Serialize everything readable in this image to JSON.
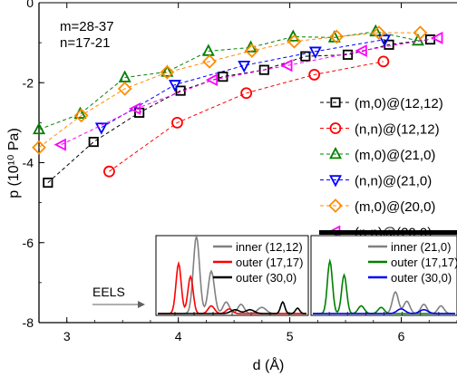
{
  "chart_data": {
    "type": "line",
    "title": "",
    "xlabel": "d (Å)",
    "ylabel": "p (10¹⁰ Pa)",
    "xlim": [
      2.75,
      6.5
    ],
    "ylim": [
      -8,
      0
    ],
    "xticks": [
      3,
      4,
      5,
      6
    ],
    "yticks": [
      0,
      -2,
      -4,
      -6,
      -8
    ],
    "grid": false,
    "legend_position": "right",
    "annotations": [
      "m=28-37",
      "n=17-21"
    ],
    "series": [
      {
        "name": "(m,0)@(12,12)",
        "marker": "square",
        "color": "#000000",
        "x": [
          2.83,
          3.24,
          3.65,
          4.02,
          4.4,
          4.77,
          5.14,
          5.52,
          5.89,
          6.26
        ],
        "y": [
          -4.5,
          -3.48,
          -2.75,
          -2.2,
          -1.85,
          -1.68,
          -1.34,
          -1.3,
          -1.05,
          -0.92
        ]
      },
      {
        "name": "(n,n)@(12,12)",
        "marker": "circle",
        "color": "#ff0000",
        "x": [
          3.38,
          3.99,
          4.61,
          5.22,
          5.84
        ],
        "y": [
          -4.22,
          -3.0,
          -2.26,
          -1.8,
          -1.47
        ]
      },
      {
        "name": "(m,0)@(21,0)",
        "marker": "triangle-up",
        "color": "#008000",
        "x": [
          2.75,
          3.12,
          3.52,
          3.9,
          4.27,
          4.65,
          5.03,
          5.4,
          5.77,
          6.15
        ],
        "y": [
          -3.17,
          -2.78,
          -1.87,
          -1.73,
          -1.21,
          -1.12,
          -0.85,
          -0.87,
          -0.72,
          -0.95
        ]
      },
      {
        "name": "(n,n)@(21,0)",
        "marker": "triangle-down",
        "color": "#0000ff",
        "x": [
          3.31,
          3.97,
          4.59,
          5.23,
          5.85
        ],
        "y": [
          -3.12,
          -2.05,
          -1.57,
          -1.22,
          -0.92
        ]
      },
      {
        "name": "(m,0)@(20,0)",
        "marker": "diamond",
        "color": "#ff8c00",
        "x": [
          2.75,
          3.13,
          3.52,
          3.9,
          4.28,
          4.66,
          5.04,
          5.42,
          5.8,
          6.17
        ],
        "y": [
          -3.62,
          -2.82,
          -2.15,
          -1.74,
          -1.47,
          -1.2,
          -0.97,
          -0.85,
          -0.75,
          -0.75
        ]
      },
      {
        "name": "(n,n)@(20,0)",
        "marker": "triangle-left",
        "color": "#ff00ff",
        "x": [
          2.95,
          3.62,
          4.31,
          4.98,
          5.65,
          6.33
        ],
        "y": [
          -3.55,
          -2.65,
          -1.93,
          -1.57,
          -1.2,
          -0.88
        ]
      }
    ],
    "insets": [
      {
        "label": "EELS",
        "legend": [
          "inner (12,12)",
          "outer (17,17)",
          "outer (30,0)"
        ],
        "colors": [
          "#808080",
          "#ff0000",
          "#000000"
        ]
      },
      {
        "legend": [
          "inner (21,0)",
          "outer (17,17)",
          "outer (30,0)"
        ],
        "colors": [
          "#808080",
          "#008000",
          "#0000ff"
        ]
      }
    ]
  }
}
